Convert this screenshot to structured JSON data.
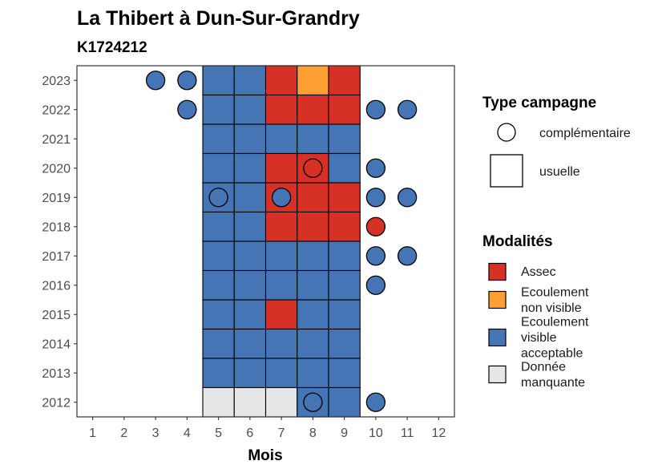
{
  "chart_data": {
    "type": "heatmap",
    "title": "La Thibert à Dun-Sur-Grandry",
    "subtitle": "K1724212",
    "xlabel": "Mois",
    "ylabel": "",
    "x_ticks": [
      "1",
      "2",
      "3",
      "4",
      "5",
      "6",
      "7",
      "8",
      "9",
      "10",
      "11",
      "12"
    ],
    "y_ticks": [
      "2012",
      "2013",
      "2014",
      "2015",
      "2016",
      "2017",
      "2018",
      "2019",
      "2020",
      "2021",
      "2022",
      "2023"
    ],
    "colors": {
      "Assec": "#d73027",
      "Ecoulement non visible": "#fd9f32",
      "Ecoulement visible acceptable": "#4575b4",
      "Donnée manquante": "#e6e6e6"
    },
    "legend_type": {
      "title": "Type campagne",
      "items": [
        {
          "key": "complementaire",
          "label": "complémentaire"
        },
        {
          "key": "usuelle",
          "label": "usuelle"
        }
      ]
    },
    "legend_modalites": {
      "title": "Modalités",
      "items": [
        {
          "key": "Assec",
          "lines": [
            "Assec"
          ]
        },
        {
          "key": "Ecoulement non visible",
          "lines": [
            "Ecoulement",
            "non visible"
          ]
        },
        {
          "key": "Ecoulement visible acceptable",
          "lines": [
            "Ecoulement",
            "visible",
            "acceptable"
          ]
        },
        {
          "key": "Donnée manquante",
          "lines": [
            "Donnée",
            "manquante"
          ]
        }
      ]
    },
    "usuelle": [
      {
        "year": 2023,
        "month": 5,
        "modalite": "Ecoulement visible acceptable"
      },
      {
        "year": 2023,
        "month": 6,
        "modalite": "Ecoulement visible acceptable"
      },
      {
        "year": 2023,
        "month": 7,
        "modalite": "Assec"
      },
      {
        "year": 2023,
        "month": 8,
        "modalite": "Ecoulement non visible"
      },
      {
        "year": 2023,
        "month": 9,
        "modalite": "Assec"
      },
      {
        "year": 2022,
        "month": 5,
        "modalite": "Ecoulement visible acceptable"
      },
      {
        "year": 2022,
        "month": 6,
        "modalite": "Ecoulement visible acceptable"
      },
      {
        "year": 2022,
        "month": 7,
        "modalite": "Assec"
      },
      {
        "year": 2022,
        "month": 8,
        "modalite": "Assec"
      },
      {
        "year": 2022,
        "month": 9,
        "modalite": "Assec"
      },
      {
        "year": 2021,
        "month": 5,
        "modalite": "Ecoulement visible acceptable"
      },
      {
        "year": 2021,
        "month": 6,
        "modalite": "Ecoulement visible acceptable"
      },
      {
        "year": 2021,
        "month": 7,
        "modalite": "Ecoulement visible acceptable"
      },
      {
        "year": 2021,
        "month": 8,
        "modalite": "Ecoulement visible acceptable"
      },
      {
        "year": 2021,
        "month": 9,
        "modalite": "Ecoulement visible acceptable"
      },
      {
        "year": 2020,
        "month": 5,
        "modalite": "Ecoulement visible acceptable"
      },
      {
        "year": 2020,
        "month": 6,
        "modalite": "Ecoulement visible acceptable"
      },
      {
        "year": 2020,
        "month": 7,
        "modalite": "Assec"
      },
      {
        "year": 2020,
        "month": 8,
        "modalite": "Assec"
      },
      {
        "year": 2020,
        "month": 9,
        "modalite": "Ecoulement visible acceptable"
      },
      {
        "year": 2019,
        "month": 5,
        "modalite": "Ecoulement visible acceptable"
      },
      {
        "year": 2019,
        "month": 6,
        "modalite": "Ecoulement visible acceptable"
      },
      {
        "year": 2019,
        "month": 7,
        "modalite": "Assec"
      },
      {
        "year": 2019,
        "month": 8,
        "modalite": "Assec"
      },
      {
        "year": 2019,
        "month": 9,
        "modalite": "Assec"
      },
      {
        "year": 2018,
        "month": 5,
        "modalite": "Ecoulement visible acceptable"
      },
      {
        "year": 2018,
        "month": 6,
        "modalite": "Ecoulement visible acceptable"
      },
      {
        "year": 2018,
        "month": 7,
        "modalite": "Assec"
      },
      {
        "year": 2018,
        "month": 8,
        "modalite": "Assec"
      },
      {
        "year": 2018,
        "month": 9,
        "modalite": "Assec"
      },
      {
        "year": 2017,
        "month": 5,
        "modalite": "Ecoulement visible acceptable"
      },
      {
        "year": 2017,
        "month": 6,
        "modalite": "Ecoulement visible acceptable"
      },
      {
        "year": 2017,
        "month": 7,
        "modalite": "Ecoulement visible acceptable"
      },
      {
        "year": 2017,
        "month": 8,
        "modalite": "Ecoulement visible acceptable"
      },
      {
        "year": 2017,
        "month": 9,
        "modalite": "Ecoulement visible acceptable"
      },
      {
        "year": 2016,
        "month": 5,
        "modalite": "Ecoulement visible acceptable"
      },
      {
        "year": 2016,
        "month": 6,
        "modalite": "Ecoulement visible acceptable"
      },
      {
        "year": 2016,
        "month": 7,
        "modalite": "Ecoulement visible acceptable"
      },
      {
        "year": 2016,
        "month": 8,
        "modalite": "Ecoulement visible acceptable"
      },
      {
        "year": 2016,
        "month": 9,
        "modalite": "Ecoulement visible acceptable"
      },
      {
        "year": 2015,
        "month": 5,
        "modalite": "Ecoulement visible acceptable"
      },
      {
        "year": 2015,
        "month": 6,
        "modalite": "Ecoulement visible acceptable"
      },
      {
        "year": 2015,
        "month": 7,
        "modalite": "Assec"
      },
      {
        "year": 2015,
        "month": 8,
        "modalite": "Ecoulement visible acceptable"
      },
      {
        "year": 2015,
        "month": 9,
        "modalite": "Ecoulement visible acceptable"
      },
      {
        "year": 2014,
        "month": 5,
        "modalite": "Ecoulement visible acceptable"
      },
      {
        "year": 2014,
        "month": 6,
        "modalite": "Ecoulement visible acceptable"
      },
      {
        "year": 2014,
        "month": 7,
        "modalite": "Ecoulement visible acceptable"
      },
      {
        "year": 2014,
        "month": 8,
        "modalite": "Ecoulement visible acceptable"
      },
      {
        "year": 2014,
        "month": 9,
        "modalite": "Ecoulement visible acceptable"
      },
      {
        "year": 2013,
        "month": 5,
        "modalite": "Ecoulement visible acceptable"
      },
      {
        "year": 2013,
        "month": 6,
        "modalite": "Ecoulement visible acceptable"
      },
      {
        "year": 2013,
        "month": 7,
        "modalite": "Ecoulement visible acceptable"
      },
      {
        "year": 2013,
        "month": 8,
        "modalite": "Ecoulement visible acceptable"
      },
      {
        "year": 2013,
        "month": 9,
        "modalite": "Ecoulement visible acceptable"
      },
      {
        "year": 2012,
        "month": 5,
        "modalite": "Donnée manquante"
      },
      {
        "year": 2012,
        "month": 6,
        "modalite": "Donnée manquante"
      },
      {
        "year": 2012,
        "month": 7,
        "modalite": "Donnée manquante"
      },
      {
        "year": 2012,
        "month": 8,
        "modalite": "Ecoulement visible acceptable"
      },
      {
        "year": 2012,
        "month": 9,
        "modalite": "Ecoulement visible acceptable"
      }
    ],
    "complementaire": [
      {
        "year": 2023,
        "month": 3,
        "modalite": "Ecoulement visible acceptable"
      },
      {
        "year": 2023,
        "month": 4,
        "modalite": "Ecoulement visible acceptable"
      },
      {
        "year": 2022,
        "month": 4,
        "modalite": "Ecoulement visible acceptable"
      },
      {
        "year": 2022,
        "month": 10,
        "modalite": "Ecoulement visible acceptable"
      },
      {
        "year": 2022,
        "month": 11,
        "modalite": "Ecoulement visible acceptable"
      },
      {
        "year": 2020,
        "month": 8,
        "modalite": "Assec"
      },
      {
        "year": 2020,
        "month": 10,
        "modalite": "Ecoulement visible acceptable"
      },
      {
        "year": 2019,
        "month": 5,
        "modalite": "Ecoulement visible acceptable"
      },
      {
        "year": 2019,
        "month": 7,
        "modalite": "Ecoulement visible acceptable"
      },
      {
        "year": 2019,
        "month": 10,
        "modalite": "Ecoulement visible acceptable"
      },
      {
        "year": 2019,
        "month": 11,
        "modalite": "Ecoulement visible acceptable"
      },
      {
        "year": 2018,
        "month": 10,
        "modalite": "Assec"
      },
      {
        "year": 2017,
        "month": 10,
        "modalite": "Ecoulement visible acceptable"
      },
      {
        "year": 2017,
        "month": 11,
        "modalite": "Ecoulement visible acceptable"
      },
      {
        "year": 2016,
        "month": 10,
        "modalite": "Ecoulement visible acceptable"
      },
      {
        "year": 2012,
        "month": 8,
        "modalite": "Ecoulement visible acceptable"
      },
      {
        "year": 2012,
        "month": 10,
        "modalite": "Ecoulement visible acceptable"
      }
    ]
  }
}
